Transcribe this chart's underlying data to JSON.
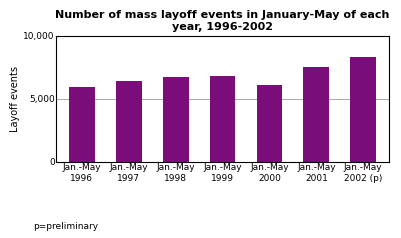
{
  "title": "Number of mass layoff events in January-May of each\nyear, 1996-2002",
  "ylabel": "Layoff events",
  "categories": [
    "Jan.-May\n1996",
    "Jan.-May\n1997",
    "Jan.-May\n1998",
    "Jan.-May\n1999",
    "Jan.-May\n2000",
    "Jan.-May\n2001",
    "Jan.-May\n2002 (p)"
  ],
  "values": [
    5900,
    6400,
    6700,
    6800,
    6100,
    7500,
    8300
  ],
  "bar_color": "#7b0d7b",
  "ylim": [
    0,
    10000
  ],
  "yticks": [
    0,
    5000,
    10000
  ],
  "ytick_labels": [
    "0",
    "5,000",
    "10,000"
  ],
  "footnote": "p=preliminary",
  "title_fontsize": 8,
  "ylabel_fontsize": 7,
  "tick_fontsize": 6.5,
  "footnote_fontsize": 6.5,
  "background_color": "#ffffff",
  "grid_color": "#aaaaaa"
}
